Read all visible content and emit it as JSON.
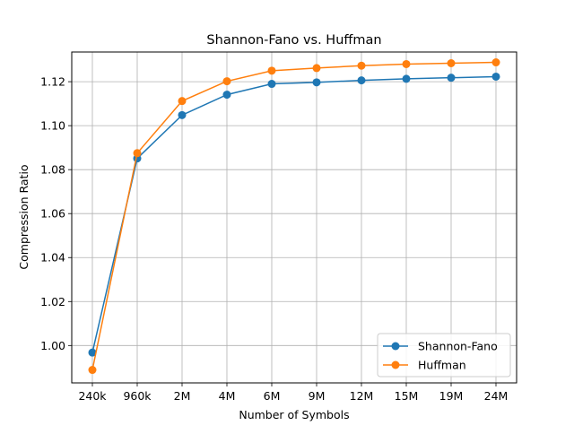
{
  "chart_data": {
    "type": "line",
    "title": "Shannon-Fano vs. Huffman",
    "xlabel": "Number of Symbols",
    "ylabel": "Compression Ratio",
    "categories": [
      "240k",
      "960k",
      "2M",
      "4M",
      "6M",
      "9M",
      "12M",
      "15M",
      "19M",
      "24M"
    ],
    "yticks": [
      "1.00",
      "1.02",
      "1.04",
      "1.06",
      "1.08",
      "1.10",
      "1.12"
    ],
    "ylim": [
      0.983,
      1.1335
    ],
    "grid": true,
    "legend_position": "lower-right",
    "series": [
      {
        "name": "Shannon-Fano",
        "color": "#1f77b4",
        "values": [
          0.9968,
          1.0851,
          1.1048,
          1.1141,
          1.119,
          1.1197,
          1.1206,
          1.1213,
          1.1218,
          1.1223
        ]
      },
      {
        "name": "Huffman",
        "color": "#ff7f0e",
        "values": [
          0.9889,
          1.0875,
          1.1112,
          1.1202,
          1.125,
          1.1262,
          1.1273,
          1.128,
          1.1284,
          1.1288
        ]
      }
    ]
  }
}
